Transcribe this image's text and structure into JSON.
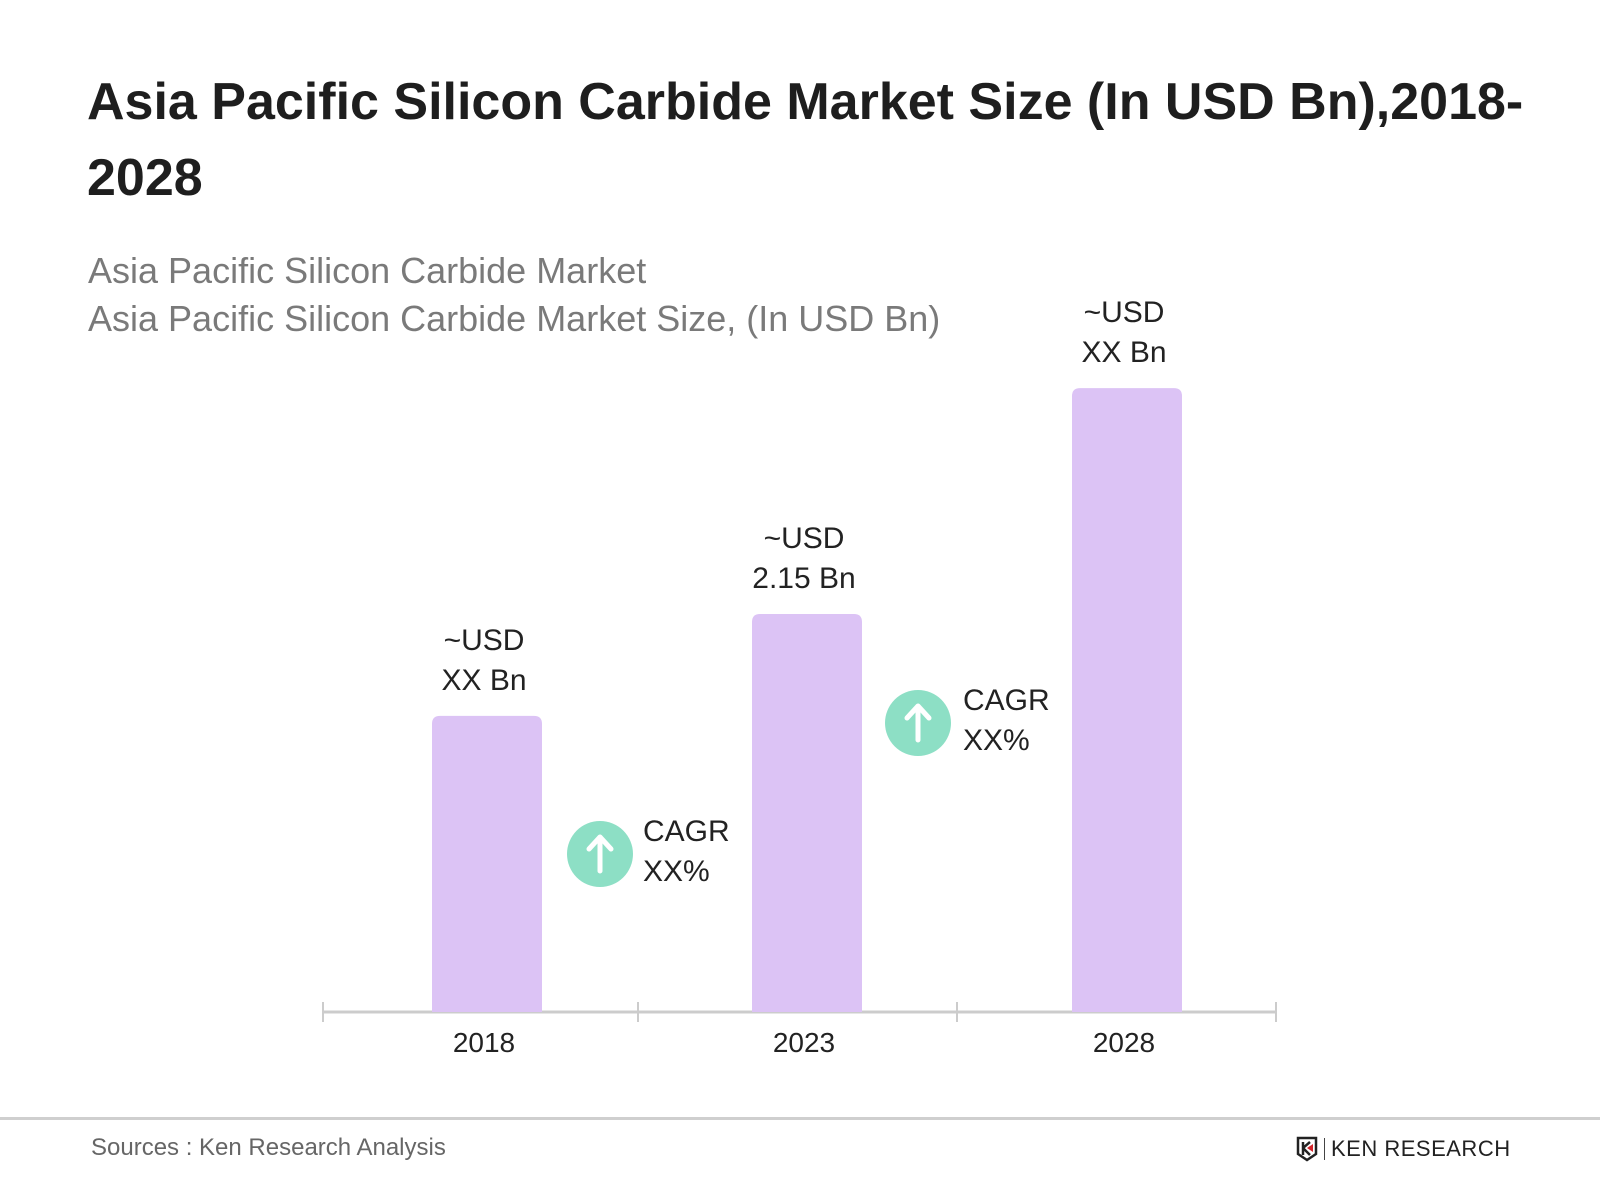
{
  "chart_data": {
    "type": "bar",
    "title": "Asia Pacific Silicon Carbide Market Size (In USD Bn),2018-2028",
    "subtitle_lines": [
      "Asia Pacific Silicon Carbide Market",
      "Asia Pacific Silicon Carbide Market Size, (In USD Bn)"
    ],
    "categories": [
      "2018",
      "2023",
      "2028"
    ],
    "values": [
      1.6,
      2.15,
      3.37
    ],
    "data_labels": [
      [
        "~USD",
        "XX Bn"
      ],
      [
        "~USD",
        "2.15 Bn"
      ],
      [
        "~USD",
        "XX Bn"
      ]
    ],
    "annotations": [
      {
        "between": [
          "2018",
          "2023"
        ],
        "lines": [
          "CAGR",
          "XX%"
        ],
        "icon": "arrow-up-circle-icon"
      },
      {
        "between": [
          "2023",
          "2028"
        ],
        "lines": [
          "CAGR",
          "XX%"
        ],
        "icon": "arrow-up-circle-icon"
      }
    ],
    "xlabel": "",
    "ylabel": "",
    "ylim": [
      0,
      3.5
    ],
    "grid": false,
    "colors": {
      "bar": "#dcc3f5",
      "cagr": "#8ddfc5",
      "axis": "#cccccc"
    }
  },
  "footer": {
    "source": "Sources : Ken Research Analysis",
    "logo_text": "KEN RESEARCH"
  }
}
